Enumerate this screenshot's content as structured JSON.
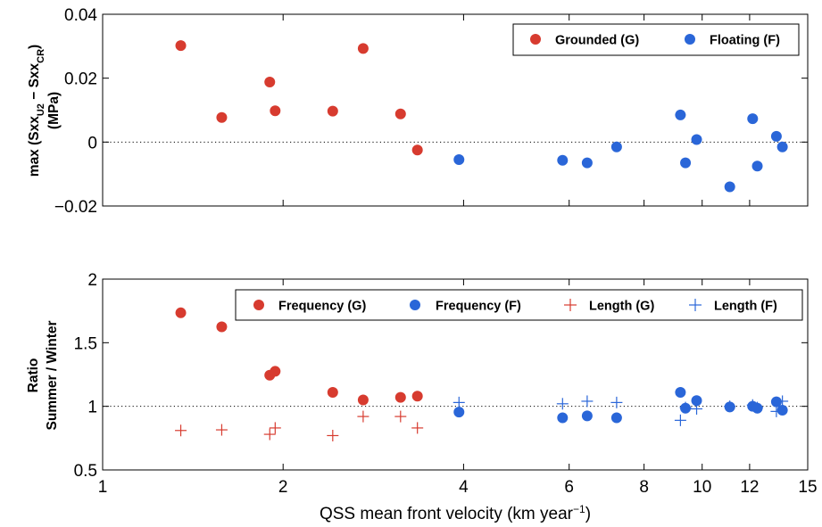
{
  "chart_data": [
    {
      "type": "scatter",
      "xscale": "log",
      "xlim": [
        1,
        15
      ],
      "ylim": [
        -0.02,
        0.04
      ],
      "yticks": [
        -0.02,
        0,
        0.02,
        0.04
      ],
      "ytick_labels": [
        "−0.02",
        "0",
        "0.02",
        "0.04"
      ],
      "ylabel": {
        "prefix": "max (Sxx",
        "sub1": "U2",
        "mid": " − Sxx",
        "sub2": "CR",
        "suffix": ")",
        "line2": "(MPa)"
      },
      "reference_line": 0,
      "legend_position": "top-right",
      "series": [
        {
          "name": "Grounded (G)",
          "marker": "dot",
          "color": "#d73b2f",
          "x": [
            1.35,
            1.58,
            1.9,
            1.94,
            2.42,
            2.72,
            3.14,
            3.35
          ],
          "y": [
            0.0302,
            0.0077,
            0.0188,
            0.0098,
            0.0097,
            0.0293,
            0.0088,
            -0.0025
          ]
        },
        {
          "name": "Floating (F)",
          "marker": "dot",
          "color": "#2a66d8",
          "x": [
            3.93,
            5.85,
            6.43,
            7.2,
            9.2,
            9.38,
            9.79,
            11.12,
            12.14,
            12.36,
            13.3,
            13.61
          ],
          "y": [
            -0.0055,
            -0.0057,
            -0.0065,
            -0.0015,
            0.0085,
            -0.0065,
            0.0008,
            -0.014,
            0.0073,
            -0.0075,
            0.0018,
            -0.0015
          ]
        }
      ]
    },
    {
      "type": "scatter",
      "xscale": "log",
      "xlim": [
        1,
        15
      ],
      "ylim": [
        0.5,
        2
      ],
      "yticks": [
        0.5,
        1,
        1.5,
        2
      ],
      "ytick_labels": [
        "0.5",
        "1",
        "1.5",
        "2"
      ],
      "ylabel": {
        "line1": "Ratio",
        "line2": "Summer / Winter"
      },
      "reference_line": 1,
      "legend_position": "top-right",
      "xticks": [
        1,
        2,
        4,
        6,
        8,
        10,
        12,
        15
      ],
      "xtick_labels": [
        "1",
        "2",
        "4",
        "6",
        "8",
        "10",
        "12",
        "15"
      ],
      "xlabel": {
        "text": "QSS mean front velocity (km year",
        "sup": "−1",
        "close": ")"
      },
      "series": [
        {
          "name": "Frequency (G)",
          "marker": "dot",
          "color": "#d73b2f",
          "x": [
            1.35,
            1.58,
            1.9,
            1.94,
            2.42,
            2.72,
            3.14,
            3.35
          ],
          "y": [
            1.735,
            1.625,
            1.245,
            1.275,
            1.11,
            1.05,
            1.07,
            1.08
          ]
        },
        {
          "name": "Frequency (F)",
          "marker": "dot",
          "color": "#2a66d8",
          "x": [
            3.93,
            5.85,
            6.43,
            7.2,
            9.2,
            9.38,
            9.79,
            11.12,
            12.14,
            12.36,
            13.3,
            13.61
          ],
          "y": [
            0.955,
            0.91,
            0.925,
            0.91,
            1.11,
            0.985,
            1.045,
            0.995,
            1.0,
            0.985,
            1.035,
            0.97
          ]
        },
        {
          "name": "Length (G)",
          "marker": "plus",
          "color": "#d73b2f",
          "x": [
            1.35,
            1.58,
            1.9,
            1.94,
            2.42,
            2.72,
            3.14,
            3.35
          ],
          "y": [
            0.81,
            0.815,
            0.78,
            0.83,
            0.77,
            0.92,
            0.92,
            0.83
          ]
        },
        {
          "name": "Length (F)",
          "marker": "plus",
          "color": "#2a66d8",
          "x": [
            3.93,
            5.85,
            6.43,
            7.2,
            9.2,
            9.38,
            9.79,
            11.12,
            12.14,
            12.36,
            13.3,
            13.61
          ],
          "y": [
            1.03,
            1.02,
            1.04,
            1.03,
            0.89,
            0.99,
            0.98,
            1.0,
            1.01,
            0.99,
            0.96,
            1.04
          ]
        }
      ]
    }
  ]
}
